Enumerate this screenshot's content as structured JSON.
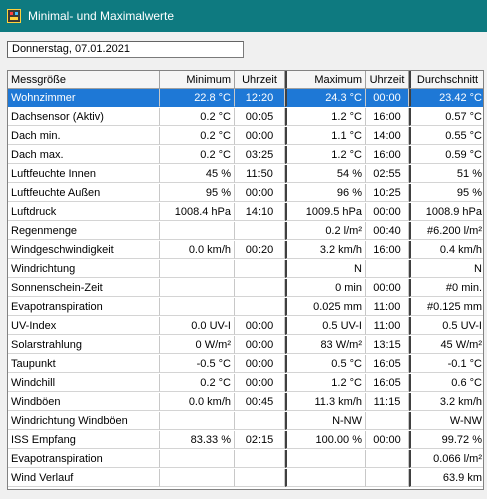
{
  "window": {
    "title": "Minimal- und Maximalwerte"
  },
  "date_field": {
    "value": "Donnerstag, 07.01.2021"
  },
  "table": {
    "headers": [
      "Messgröße",
      "Minimum",
      "Uhrzeit",
      "Maximum",
      "Uhrzeit",
      "Durchschnitt"
    ],
    "selected_row": 0,
    "rows": [
      [
        "Wohnzimmer",
        "22.8 °C",
        "12:20",
        "24.3 °C",
        "00:00",
        "23.42 °C"
      ],
      [
        "Dachsensor (Aktiv)",
        "0.2 °C",
        "00:05",
        "1.2 °C",
        "16:00",
        "0.57 °C"
      ],
      [
        "Dach min.",
        "0.2 °C",
        "00:00",
        "1.1 °C",
        "14:00",
        "0.55 °C"
      ],
      [
        "Dach max.",
        "0.2 °C",
        "03:25",
        "1.2 °C",
        "16:00",
        "0.59 °C"
      ],
      [
        "Luftfeuchte Innen",
        "45 %",
        "11:50",
        "54 %",
        "02:55",
        "51 %"
      ],
      [
        "Luftfeuchte Außen",
        "95 %",
        "00:00",
        "96 %",
        "10:25",
        "95 %"
      ],
      [
        "Luftdruck",
        "1008.4 hPa",
        "14:10",
        "1009.5 hPa",
        "00:00",
        "1008.9 hPa"
      ],
      [
        "Regenmenge",
        "",
        "",
        "0.2 l/m²",
        "00:40",
        "#6.200 l/m²"
      ],
      [
        "Windgeschwindigkeit",
        "0.0 km/h",
        "00:20",
        "3.2 km/h",
        "16:00",
        "0.4 km/h"
      ],
      [
        "Windrichtung",
        "",
        "",
        "N",
        "",
        "N"
      ],
      [
        "Sonnenschein-Zeit",
        "",
        "",
        "0 min",
        "00:00",
        "#0 min."
      ],
      [
        "Evapotranspiration",
        "",
        "",
        "0.025 mm",
        "11:00",
        "#0.125 mm"
      ],
      [
        "UV-Index",
        "0.0 UV-I",
        "00:00",
        "0.5 UV-I",
        "11:00",
        "0.5 UV-I"
      ],
      [
        "Solarstrahlung",
        "0 W/m²",
        "00:00",
        "83 W/m²",
        "13:15",
        "45 W/m²"
      ],
      [
        "Taupunkt",
        "-0.5 °C",
        "00:00",
        "0.5 °C",
        "16:05",
        "-0.1 °C"
      ],
      [
        "Windchill",
        "0.2 °C",
        "00:00",
        "1.2 °C",
        "16:05",
        "0.6 °C"
      ],
      [
        "Windböen",
        "0.0 km/h",
        "00:45",
        "11.3 km/h",
        "11:15",
        "3.2 km/h"
      ],
      [
        "Windrichtung Windböen",
        "",
        "",
        "N-NW",
        "",
        "W-NW"
      ],
      [
        "ISS Empfang",
        "83.33 %",
        "02:15",
        "100.00 %",
        "00:00",
        "99.72 %"
      ],
      [
        "Evapotranspiration",
        "",
        "",
        "",
        "",
        "0.066 l/m²"
      ],
      [
        "Wind Verlauf",
        "",
        "",
        "",
        "",
        "63.9 km"
      ]
    ]
  },
  "colors": {
    "titlebar": "#0e7a80",
    "selection": "#1e78d6"
  },
  "icons": {
    "app": "weather-station-icon"
  }
}
